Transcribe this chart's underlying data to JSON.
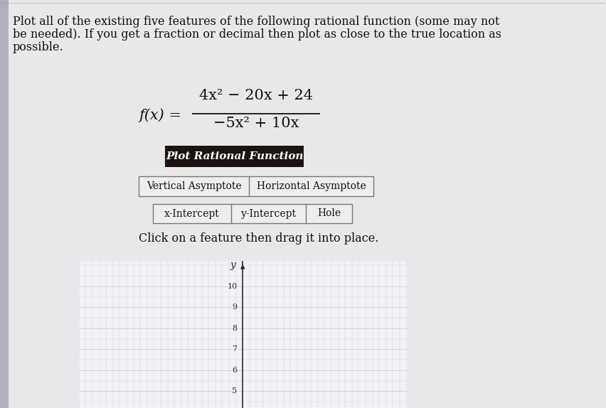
{
  "page_bg": "#e8e8eb",
  "title_lines": [
    "Plot all of the existing five features of the following rational function (some may not",
    "be needed). If you get a fraction or decimal then plot as close to the true location as",
    "possible."
  ],
  "title_fontsize": 11.5,
  "formula_fontsize": 15,
  "fx_label": "f(x) = ",
  "numerator": "4x² − 20x + 24",
  "denominator": "−5x² + 10x",
  "button_plot_text": "Plot Rational Function",
  "button_plot_bg": "#1c1410",
  "button_plot_fg": "#ffffff",
  "button_plot_fontsize": 11,
  "button_row1": [
    "Vertical Asymptote",
    "Horizontal Asymptote"
  ],
  "button_row2": [
    "x-Intercept",
    "y-Intercept",
    "Hole"
  ],
  "button_fontsize": 10,
  "button_border_color": "#777777",
  "button_bg": "#f0eeec",
  "instruction_text": "Click on a feature then drag it into place.",
  "instruction_fontsize": 11.5,
  "grid_bg": "#f2f2f5",
  "grid_line_color": "#c0c4d8",
  "axis_color": "#2a2a2a",
  "tick_label_color": "#333333",
  "tick_fontsize": 8,
  "y_label": "y",
  "y_ticks": [
    5,
    6,
    7,
    8,
    9,
    10
  ],
  "top_border_color": "#999999",
  "left_margin_color": "#b0b0c0"
}
